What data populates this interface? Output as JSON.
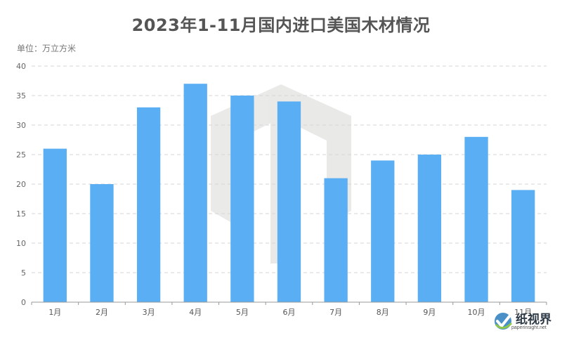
{
  "title": "2023年1-11月国内进口美国木材情况",
  "unit_label": "单位：万立方米",
  "chart_data": {
    "type": "bar",
    "title": "2023年1-11月国内进口美国木材情况",
    "ylabel": "单位：万立方米",
    "xlabel": "",
    "categories": [
      "1月",
      "2月",
      "3月",
      "4月",
      "5月",
      "6月",
      "7月",
      "8月",
      "9月",
      "10月",
      "11月"
    ],
    "values": [
      26,
      20,
      33,
      37,
      35,
      34,
      21,
      24,
      25,
      28,
      19
    ],
    "ylim": [
      0,
      40
    ],
    "yticks": [
      0,
      5,
      10,
      15,
      20,
      25,
      30,
      35,
      40
    ],
    "grid": true,
    "legend": "none",
    "bar_color": "#5aaef4"
  },
  "watermark": {
    "name": "纸视界",
    "url": "paperinsight.net",
    "icon": "paperinsight-logo-icon"
  }
}
